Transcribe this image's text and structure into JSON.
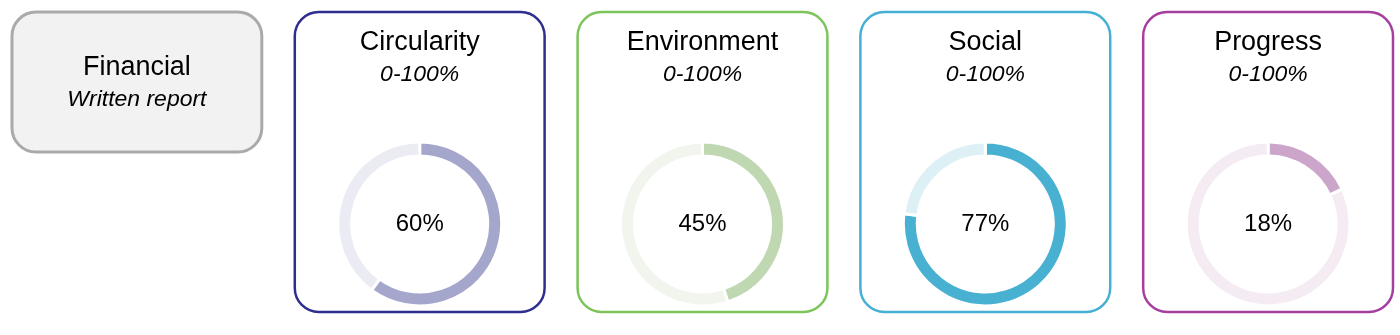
{
  "chart_data": [
    {
      "type": "other",
      "title": "Financial",
      "subtitle": "Written report"
    },
    {
      "type": "donut",
      "title": "Circularity",
      "subtitle": "0-100%",
      "categories": [
        null,
        null
      ],
      "values": [
        60,
        40
      ],
      "colors": [
        "#a5a6cc",
        "#ebebf4"
      ],
      "value_labels": [
        "60%",
        null
      ]
    },
    {
      "type": "donut",
      "title": "Environment",
      "subtitle": "0-100%",
      "categories": [
        null,
        null
      ],
      "values": [
        45,
        55
      ],
      "colors": [
        "#c0d8b2",
        "#f1f5ee"
      ],
      "value_labels": [
        "45%",
        null
      ]
    },
    {
      "type": "donut",
      "title": "Social",
      "subtitle": "0-100%",
      "categories": [
        null,
        null
      ],
      "values": [
        77,
        23
      ],
      "colors": [
        "#48b1d1",
        "#dcf0f5"
      ],
      "value_labels": [
        "77%",
        null
      ]
    },
    {
      "type": "donut",
      "title": "Progress",
      "subtitle": "0-100%",
      "categories": [
        null,
        null
      ],
      "values": [
        18,
        82
      ],
      "colors": [
        "#cba6ca",
        "#f4ebf3"
      ],
      "value_labels": [
        "18%",
        null
      ]
    }
  ]
}
